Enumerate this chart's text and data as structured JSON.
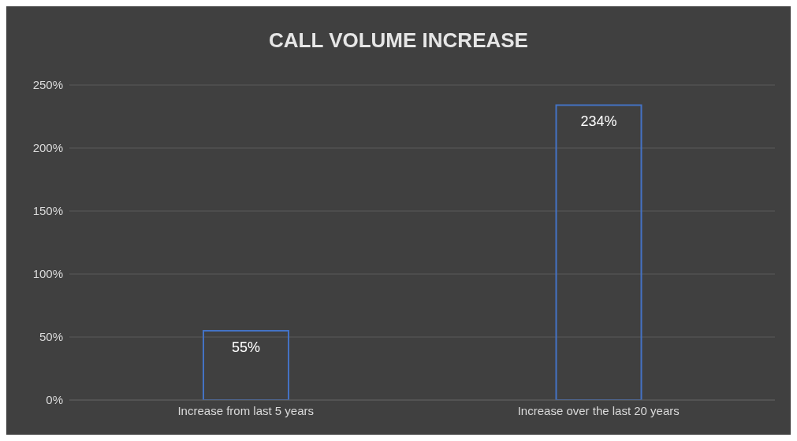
{
  "chart_data": {
    "type": "bar",
    "title": "CALL VOLUME INCREASE",
    "categories": [
      "Increase from last 5 years",
      "Increase over the last 20 years"
    ],
    "values": [
      55,
      234
    ],
    "value_labels": [
      "55%",
      "234%"
    ],
    "color": "#4472c4",
    "ylim": [
      0,
      250
    ],
    "yticks": [
      {
        "value": 0,
        "label": "0%"
      },
      {
        "value": 50,
        "label": "50%"
      },
      {
        "value": 100,
        "label": "100%"
      },
      {
        "value": 150,
        "label": "150%"
      },
      {
        "value": 200,
        "label": "200%"
      },
      {
        "value": 250,
        "label": "250%"
      }
    ],
    "grid": "y"
  }
}
